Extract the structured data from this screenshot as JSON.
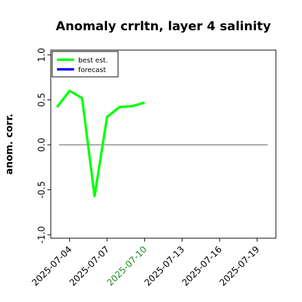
{
  "chart_data": {
    "type": "line",
    "title": "Anomaly crrltn, layer 4 salinity",
    "ylabel": "anom. corr.",
    "xlabel": "",
    "ylim": [
      -1.0,
      1.0
    ],
    "yticks": [
      -1.0,
      -0.5,
      0.0,
      0.5,
      1.0
    ],
    "ytick_labels": [
      "-1.0",
      "-0.5",
      "0.0",
      "0.5",
      "1.0"
    ],
    "xlim": [
      "2025-07-02T12:00",
      "2025-07-20T12:00"
    ],
    "xtick_labels": [
      {
        "date": "2025-07-04",
        "label": "2025-07-04",
        "color": "#000000"
      },
      {
        "date": "2025-07-07",
        "label": "2025-07-07",
        "color": "#000000"
      },
      {
        "date": "2025-07-10",
        "label": "2025-07-10",
        "color": "#228B22"
      },
      {
        "date": "2025-07-13",
        "label": "2025-07-13",
        "color": "#000000"
      },
      {
        "date": "2025-07-16",
        "label": "2025-07-16",
        "color": "#000000"
      },
      {
        "date": "2025-07-19",
        "label": "2025-07-19",
        "color": "#000000"
      }
    ],
    "grid": false,
    "reference_line": 0.0,
    "legend_position": "top-left",
    "series": [
      {
        "name": "best est.",
        "color": "#00ff00",
        "x": [
          "2025-07-03",
          "2025-07-04",
          "2025-07-05",
          "2025-07-06",
          "2025-07-07",
          "2025-07-08",
          "2025-07-09",
          "2025-07-10"
        ],
        "values": [
          0.42,
          0.6,
          0.52,
          -0.57,
          0.31,
          0.42,
          0.43,
          0.47
        ]
      },
      {
        "name": "forecast",
        "color": "#0000ff",
        "x": [],
        "values": []
      }
    ]
  }
}
